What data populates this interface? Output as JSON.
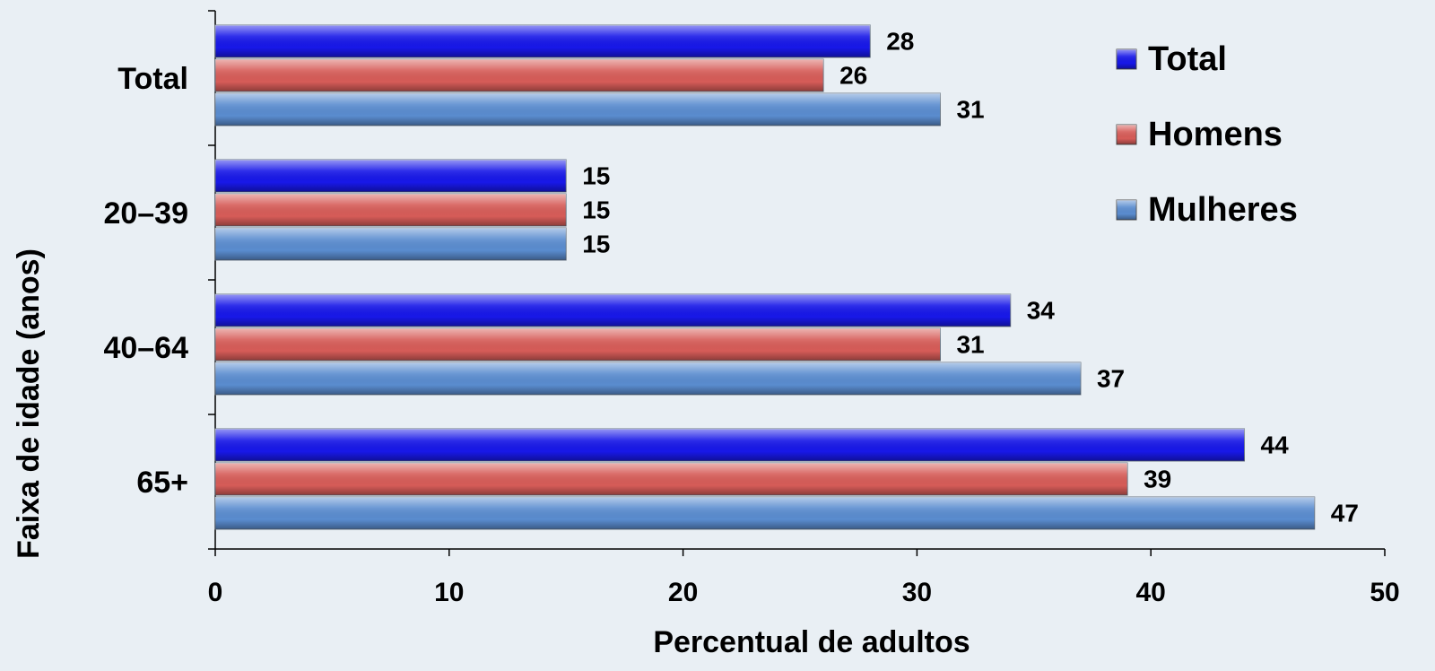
{
  "chart_data": {
    "type": "bar",
    "orientation": "horizontal",
    "xlabel": "Percentual de adultos",
    "ylabel": "Faixa de idade (anos)",
    "categories": [
      "Total",
      "20–39",
      "40–64",
      "65+"
    ],
    "series": [
      {
        "name": "Total",
        "color": "#1818e8",
        "values": [
          28,
          15,
          34,
          44
        ]
      },
      {
        "name": "Homens",
        "color": "#d65c58",
        "values": [
          26,
          15,
          31,
          39
        ]
      },
      {
        "name": "Mulheres",
        "color": "#5a8ccf",
        "values": [
          31,
          15,
          37,
          47
        ]
      }
    ],
    "xlim": [
      0,
      50
    ],
    "xticks": [
      0,
      10,
      20,
      30,
      40,
      50
    ],
    "legend": "upper right",
    "grid": false
  }
}
